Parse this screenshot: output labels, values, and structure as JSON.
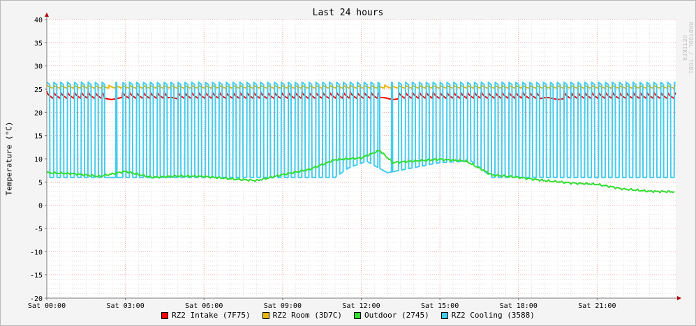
{
  "chart_data": {
    "type": "line",
    "title": "Last 24 hours",
    "ylabel": "Temperature (°C)",
    "watermark": "RRDTOOL / TOBI OETIKER",
    "ylim": [
      -20,
      40
    ],
    "y_ticks": [
      "40",
      "35",
      "30",
      "25",
      "20",
      "15",
      "10",
      "5",
      "0",
      "-5",
      "-10",
      "-15",
      "-20"
    ],
    "x_ticks": [
      "Sat 00:00",
      "Sat 03:00",
      "Sat 06:00",
      "Sat 09:00",
      "Sat 12:00",
      "Sat 15:00",
      "Sat 18:00",
      "Sat 21:00"
    ],
    "x_unit": "hour",
    "xlim": [
      0,
      24
    ],
    "grid": true,
    "legend_position": "bottom",
    "series": [
      {
        "name": "RZ2 Intake (7F75)",
        "color": "#ff0000",
        "style": "sawtooth",
        "low": 23.0,
        "high": 24.6,
        "cycles_per_hour": 3.8,
        "gaps": [
          [
            2.2,
            2.9
          ],
          [
            4.6,
            5.0
          ],
          [
            12.7,
            13.4
          ],
          [
            18.8,
            19.7
          ]
        ]
      },
      {
        "name": "RZ2 Room (3D7C)",
        "color": "#e8b800",
        "style": "sawtooth",
        "low": 25.2,
        "high": 26.0,
        "cycles_per_hour": 3.8,
        "gaps": []
      },
      {
        "name": "Outdoor (2745)",
        "color": "#33dd33",
        "style": "trend",
        "points": [
          [
            0,
            7.0
          ],
          [
            1,
            6.8
          ],
          [
            2,
            6.2
          ],
          [
            3,
            7.3
          ],
          [
            4,
            6.0
          ],
          [
            5,
            6.3
          ],
          [
            6,
            6.2
          ],
          [
            7,
            5.7
          ],
          [
            8,
            5.3
          ],
          [
            9,
            6.6
          ],
          [
            10,
            7.7
          ],
          [
            11,
            9.8
          ],
          [
            12,
            10.2
          ],
          [
            12.7,
            11.8
          ],
          [
            13.2,
            9.2
          ],
          [
            14,
            9.5
          ],
          [
            15,
            9.9
          ],
          [
            16,
            9.5
          ],
          [
            16.5,
            8.0
          ],
          [
            17,
            6.5
          ],
          [
            18,
            6.0
          ],
          [
            19,
            5.3
          ],
          [
            20,
            4.8
          ],
          [
            21,
            4.5
          ],
          [
            22,
            3.5
          ],
          [
            23,
            3.0
          ],
          [
            24,
            2.9
          ]
        ]
      },
      {
        "name": "RZ2 Cooling (3588)",
        "color": "#44ccee",
        "style": "pulses",
        "high": 26.5,
        "pulses_per_hour": 3.8,
        "baseline_points": [
          [
            0,
            6.0
          ],
          [
            11,
            6.0
          ],
          [
            11.5,
            8.0
          ],
          [
            12.2,
            9.5
          ],
          [
            13,
            7.0
          ],
          [
            15,
            9.2
          ],
          [
            16.2,
            9.5
          ],
          [
            17,
            6.0
          ],
          [
            24,
            6.0
          ]
        ],
        "sparse": [
          [
            2.2,
            2.9
          ],
          [
            12.7,
            13.4
          ]
        ]
      }
    ]
  }
}
